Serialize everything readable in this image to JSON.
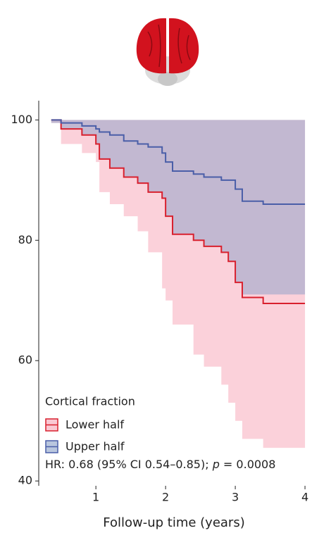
{
  "chart_data": {
    "type": "step",
    "x_label": "Follow-up time (years)",
    "xlim": [
      0.18,
      4.04
    ],
    "xticks": [
      1,
      2,
      3,
      4
    ],
    "ylim": [
      39.2,
      103.2
    ],
    "yticks": [
      40,
      60,
      80,
      100
    ],
    "x": [
      0.36,
      0.5,
      0.8,
      1.0,
      1.05,
      1.2,
      1.4,
      1.6,
      1.75,
      1.95,
      2.0,
      2.1,
      2.4,
      2.55,
      2.8,
      2.9,
      3.0,
      3.1,
      3.4,
      4.0
    ],
    "legend_title": "Cortical fraction",
    "series": [
      {
        "name": "Lower half",
        "color": "#d8202e",
        "band_color": "#f7a3b5",
        "values": [
          100,
          98.5,
          97.5,
          96,
          93.5,
          92,
          90.5,
          89.5,
          88,
          87,
          84,
          81,
          80,
          79,
          78,
          76.5,
          73,
          70.5,
          69.5,
          69.5
        ],
        "lower": [
          99.5,
          96,
          94.5,
          93,
          88,
          86,
          84,
          81.5,
          78,
          72,
          70,
          66,
          61,
          59,
          56,
          53,
          50,
          47,
          45.5,
          45.5
        ],
        "upper": [
          100,
          100,
          100,
          100,
          100,
          100,
          100,
          100,
          100,
          100,
          100,
          100,
          100,
          100,
          100,
          100,
          100,
          100,
          100,
          100
        ]
      },
      {
        "name": "Upper half",
        "color": "#4a5ea8",
        "band_color": "#8aa0c8",
        "values": [
          100,
          99.5,
          99,
          98.5,
          98,
          97.5,
          96.5,
          96,
          95.5,
          94.5,
          93,
          91.5,
          91,
          90.5,
          90,
          90,
          88.5,
          86.5,
          86,
          86
        ],
        "lower": [
          99.5,
          98.5,
          97.5,
          96,
          93.5,
          92,
          90.5,
          89.5,
          88,
          87,
          84,
          81,
          80,
          79,
          78,
          76.5,
          73,
          71,
          71,
          71
        ],
        "upper": [
          100,
          100,
          100,
          100,
          100,
          100,
          100,
          100,
          100,
          100,
          100,
          100,
          100,
          100,
          100,
          100,
          100,
          100,
          100,
          100
        ]
      }
    ],
    "annotation": [
      "HR: 0.68 (95% CI 0.54–0.85); ",
      "p",
      " = 0.0008"
    ]
  }
}
